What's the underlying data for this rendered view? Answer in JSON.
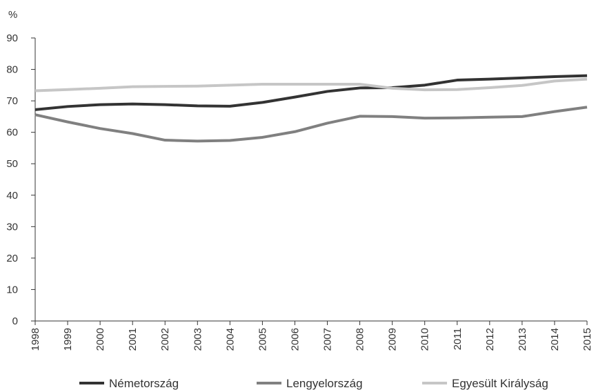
{
  "chart_data": {
    "type": "line",
    "title": "",
    "xlabel": "",
    "ylabel": "%",
    "ylim": [
      0,
      90
    ],
    "yticks": [
      0,
      10,
      20,
      30,
      40,
      50,
      60,
      70,
      80,
      90
    ],
    "grid": false,
    "legend_position": "bottom",
    "x": [
      "1998",
      "1999",
      "2000",
      "2001",
      "2002",
      "2003",
      "2004",
      "2005",
      "2006",
      "2007",
      "2008",
      "2009",
      "2010",
      "2011",
      "2012",
      "2013",
      "2014",
      "2015"
    ],
    "series": [
      {
        "name": "Németország",
        "color": "#333333",
        "values": [
          67.2,
          68.2,
          68.8,
          69.0,
          68.8,
          68.4,
          68.3,
          69.5,
          71.2,
          73.0,
          74.1,
          74.2,
          75.0,
          76.6,
          76.9,
          77.3,
          77.7,
          78.0
        ]
      },
      {
        "name": "Lengyelország",
        "color": "#808080",
        "values": [
          65.6,
          63.3,
          61.2,
          59.6,
          57.5,
          57.2,
          57.4,
          58.4,
          60.2,
          62.9,
          65.1,
          65.0,
          64.5,
          64.6,
          64.8,
          65.0,
          66.6,
          68.0
        ]
      },
      {
        "name": "Egyesült Királyság",
        "color": "#c6c6c6",
        "values": [
          73.2,
          73.6,
          74.0,
          74.5,
          74.6,
          74.7,
          75.0,
          75.3,
          75.3,
          75.3,
          75.3,
          74.0,
          73.5,
          73.6,
          74.2,
          74.9,
          76.3,
          76.9
        ]
      }
    ]
  }
}
